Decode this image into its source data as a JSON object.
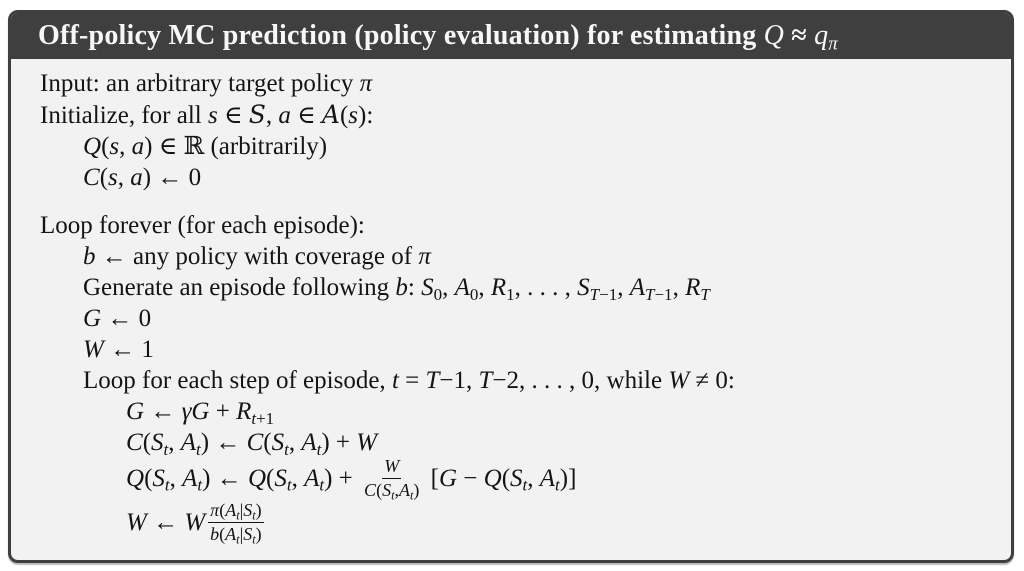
{
  "colors": {
    "page_bg": "#ffffff",
    "header_bg": "#3f3f3f",
    "body_bg": "#f2f2f2",
    "border": "#3f3f3f",
    "title_text": "#f7f7f7",
    "body_text": "#141414"
  },
  "algorithm": {
    "title_parts": [
      {
        "text": "Off-policy MC prediction (policy evaluation) for estimating ",
        "style": "rm"
      },
      {
        "text": "Q",
        "style": "it"
      },
      {
        "text": " ≈ ",
        "style": "rm"
      },
      {
        "text": "q",
        "style": "it"
      },
      {
        "text": "π",
        "style": "subi"
      }
    ],
    "lines": [
      {
        "indent": 0,
        "gap_before": false,
        "parts": [
          {
            "text": "Input: an arbitrary target policy ",
            "style": "rm"
          },
          {
            "text": "π",
            "style": "it"
          }
        ]
      },
      {
        "indent": 0,
        "gap_before": false,
        "parts": [
          {
            "text": "Initialize, for all ",
            "style": "rm"
          },
          {
            "text": "s",
            "style": "it"
          },
          {
            "text": " ∈ ",
            "style": "rm"
          },
          {
            "text": "S",
            "style": "cal"
          },
          {
            "text": ", ",
            "style": "rm"
          },
          {
            "text": "a",
            "style": "it"
          },
          {
            "text": " ∈ ",
            "style": "rm"
          },
          {
            "text": "A",
            "style": "cal"
          },
          {
            "text": "(",
            "style": "rm"
          },
          {
            "text": "s",
            "style": "it"
          },
          {
            "text": "):",
            "style": "rm"
          }
        ]
      },
      {
        "indent": 1,
        "gap_before": false,
        "parts": [
          {
            "text": "Q",
            "style": "it"
          },
          {
            "text": "(",
            "style": "rm"
          },
          {
            "text": "s",
            "style": "it"
          },
          {
            "text": ", ",
            "style": "rm"
          },
          {
            "text": "a",
            "style": "it"
          },
          {
            "text": ") ∈ ℝ (arbitrarily)",
            "style": "rm"
          }
        ]
      },
      {
        "indent": 1,
        "gap_before": false,
        "parts": [
          {
            "text": "C",
            "style": "it"
          },
          {
            "text": "(",
            "style": "rm"
          },
          {
            "text": "s",
            "style": "it"
          },
          {
            "text": ", ",
            "style": "rm"
          },
          {
            "text": "a",
            "style": "it"
          },
          {
            "text": ") ← 0",
            "style": "rm"
          }
        ]
      },
      {
        "indent": 0,
        "gap_before": true,
        "parts": [
          {
            "text": "Loop forever (for each episode):",
            "style": "rm"
          }
        ]
      },
      {
        "indent": 1,
        "gap_before": false,
        "parts": [
          {
            "text": "b",
            "style": "it"
          },
          {
            "text": " ← any policy with coverage of ",
            "style": "rm"
          },
          {
            "text": "π",
            "style": "it"
          }
        ]
      },
      {
        "indent": 1,
        "gap_before": false,
        "parts": [
          {
            "text": "Generate an episode following ",
            "style": "rm"
          },
          {
            "text": "b",
            "style": "it"
          },
          {
            "text": ": ",
            "style": "rm"
          },
          {
            "text": "S",
            "style": "it"
          },
          {
            "text": "0",
            "style": "sub"
          },
          {
            "text": ", ",
            "style": "rm"
          },
          {
            "text": "A",
            "style": "it"
          },
          {
            "text": "0",
            "style": "sub"
          },
          {
            "text": ", ",
            "style": "rm"
          },
          {
            "text": "R",
            "style": "it"
          },
          {
            "text": "1",
            "style": "sub"
          },
          {
            "text": ", . . . , ",
            "style": "rm"
          },
          {
            "text": "S",
            "style": "it"
          },
          {
            "text": "T",
            "style": "subi"
          },
          {
            "text": "−1",
            "style": "sub"
          },
          {
            "text": ", ",
            "style": "rm"
          },
          {
            "text": "A",
            "style": "it"
          },
          {
            "text": "T",
            "style": "subi"
          },
          {
            "text": "−1",
            "style": "sub"
          },
          {
            "text": ", ",
            "style": "rm"
          },
          {
            "text": "R",
            "style": "it"
          },
          {
            "text": "T",
            "style": "subi"
          }
        ]
      },
      {
        "indent": 1,
        "gap_before": false,
        "parts": [
          {
            "text": "G",
            "style": "it"
          },
          {
            "text": " ← 0",
            "style": "rm"
          }
        ]
      },
      {
        "indent": 1,
        "gap_before": false,
        "parts": [
          {
            "text": "W",
            "style": "it"
          },
          {
            "text": " ← 1",
            "style": "rm"
          }
        ]
      },
      {
        "indent": 1,
        "gap_before": false,
        "parts": [
          {
            "text": "Loop for each step of episode, ",
            "style": "rm"
          },
          {
            "text": "t",
            "style": "it"
          },
          {
            "text": " = ",
            "style": "rm"
          },
          {
            "text": "T",
            "style": "it"
          },
          {
            "text": "−1, ",
            "style": "rm"
          },
          {
            "text": "T",
            "style": "it"
          },
          {
            "text": "−2, . . . , 0, while ",
            "style": "rm"
          },
          {
            "text": "W",
            "style": "it"
          },
          {
            "text": " ≠ 0:",
            "style": "rm"
          }
        ]
      },
      {
        "indent": 2,
        "gap_before": false,
        "parts": [
          {
            "text": "G",
            "style": "it"
          },
          {
            "text": " ← ",
            "style": "rm"
          },
          {
            "text": "γG",
            "style": "it"
          },
          {
            "text": " + ",
            "style": "rm"
          },
          {
            "text": "R",
            "style": "it"
          },
          {
            "text": "t",
            "style": "subi"
          },
          {
            "text": "+1",
            "style": "sub"
          }
        ]
      },
      {
        "indent": 2,
        "gap_before": false,
        "parts": [
          {
            "text": "C",
            "style": "it"
          },
          {
            "text": "(",
            "style": "rm"
          },
          {
            "text": "S",
            "style": "it"
          },
          {
            "text": "t",
            "style": "subi"
          },
          {
            "text": ", ",
            "style": "rm"
          },
          {
            "text": "A",
            "style": "it"
          },
          {
            "text": "t",
            "style": "subi"
          },
          {
            "text": ") ← ",
            "style": "rm"
          },
          {
            "text": "C",
            "style": "it"
          },
          {
            "text": "(",
            "style": "rm"
          },
          {
            "text": "S",
            "style": "it"
          },
          {
            "text": "t",
            "style": "subi"
          },
          {
            "text": ", ",
            "style": "rm"
          },
          {
            "text": "A",
            "style": "it"
          },
          {
            "text": "t",
            "style": "subi"
          },
          {
            "text": ") + ",
            "style": "rm"
          },
          {
            "text": "W",
            "style": "it"
          }
        ]
      },
      {
        "indent": 2,
        "gap_before": false,
        "parts": [
          {
            "text": "Q",
            "style": "it"
          },
          {
            "text": "(",
            "style": "rm"
          },
          {
            "text": "S",
            "style": "it"
          },
          {
            "text": "t",
            "style": "subi"
          },
          {
            "text": ", ",
            "style": "rm"
          },
          {
            "text": "A",
            "style": "it"
          },
          {
            "text": "t",
            "style": "subi"
          },
          {
            "text": ") ← ",
            "style": "rm"
          },
          {
            "text": "Q",
            "style": "it"
          },
          {
            "text": "(",
            "style": "rm"
          },
          {
            "text": "S",
            "style": "it"
          },
          {
            "text": "t",
            "style": "subi"
          },
          {
            "text": ", ",
            "style": "rm"
          },
          {
            "text": "A",
            "style": "it"
          },
          {
            "text": "t",
            "style": "subi"
          },
          {
            "text": ") + ",
            "style": "rm"
          },
          {
            "frac": {
              "num": [
                {
                  "text": "W",
                  "style": "it"
                }
              ],
              "den": [
                {
                  "text": "C",
                  "style": "it"
                },
                {
                  "text": "(",
                  "style": "rm"
                },
                {
                  "text": "S",
                  "style": "it"
                },
                {
                  "text": "t",
                  "style": "subi"
                },
                {
                  "text": ",",
                  "style": "rm"
                },
                {
                  "text": "A",
                  "style": "it"
                },
                {
                  "text": "t",
                  "style": "subi"
                },
                {
                  "text": ")",
                  "style": "rm"
                }
              ]
            }
          },
          {
            "text": " [",
            "style": "rm"
          },
          {
            "text": "G",
            "style": "it"
          },
          {
            "text": " − ",
            "style": "rm"
          },
          {
            "text": "Q",
            "style": "it"
          },
          {
            "text": "(",
            "style": "rm"
          },
          {
            "text": "S",
            "style": "it"
          },
          {
            "text": "t",
            "style": "subi"
          },
          {
            "text": ", ",
            "style": "rm"
          },
          {
            "text": "A",
            "style": "it"
          },
          {
            "text": "t",
            "style": "subi"
          },
          {
            "text": ")]",
            "style": "rm"
          }
        ]
      },
      {
        "indent": 2,
        "gap_before": false,
        "parts": [
          {
            "text": "W",
            "style": "it"
          },
          {
            "text": " ← ",
            "style": "rm"
          },
          {
            "text": "W",
            "style": "it"
          },
          {
            "frac": {
              "num": [
                {
                  "text": "π",
                  "style": "it"
                },
                {
                  "text": "(",
                  "style": "rm"
                },
                {
                  "text": "A",
                  "style": "it"
                },
                {
                  "text": "t",
                  "style": "subi"
                },
                {
                  "text": "|",
                  "style": "rm"
                },
                {
                  "text": "S",
                  "style": "it"
                },
                {
                  "text": "t",
                  "style": "subi"
                },
                {
                  "text": ")",
                  "style": "rm"
                }
              ],
              "den": [
                {
                  "text": "b",
                  "style": "it"
                },
                {
                  "text": "(",
                  "style": "rm"
                },
                {
                  "text": "A",
                  "style": "it"
                },
                {
                  "text": "t",
                  "style": "subi"
                },
                {
                  "text": "|",
                  "style": "rm"
                },
                {
                  "text": "S",
                  "style": "it"
                },
                {
                  "text": "t",
                  "style": "subi"
                },
                {
                  "text": ")",
                  "style": "rm"
                }
              ]
            }
          }
        ]
      }
    ]
  }
}
